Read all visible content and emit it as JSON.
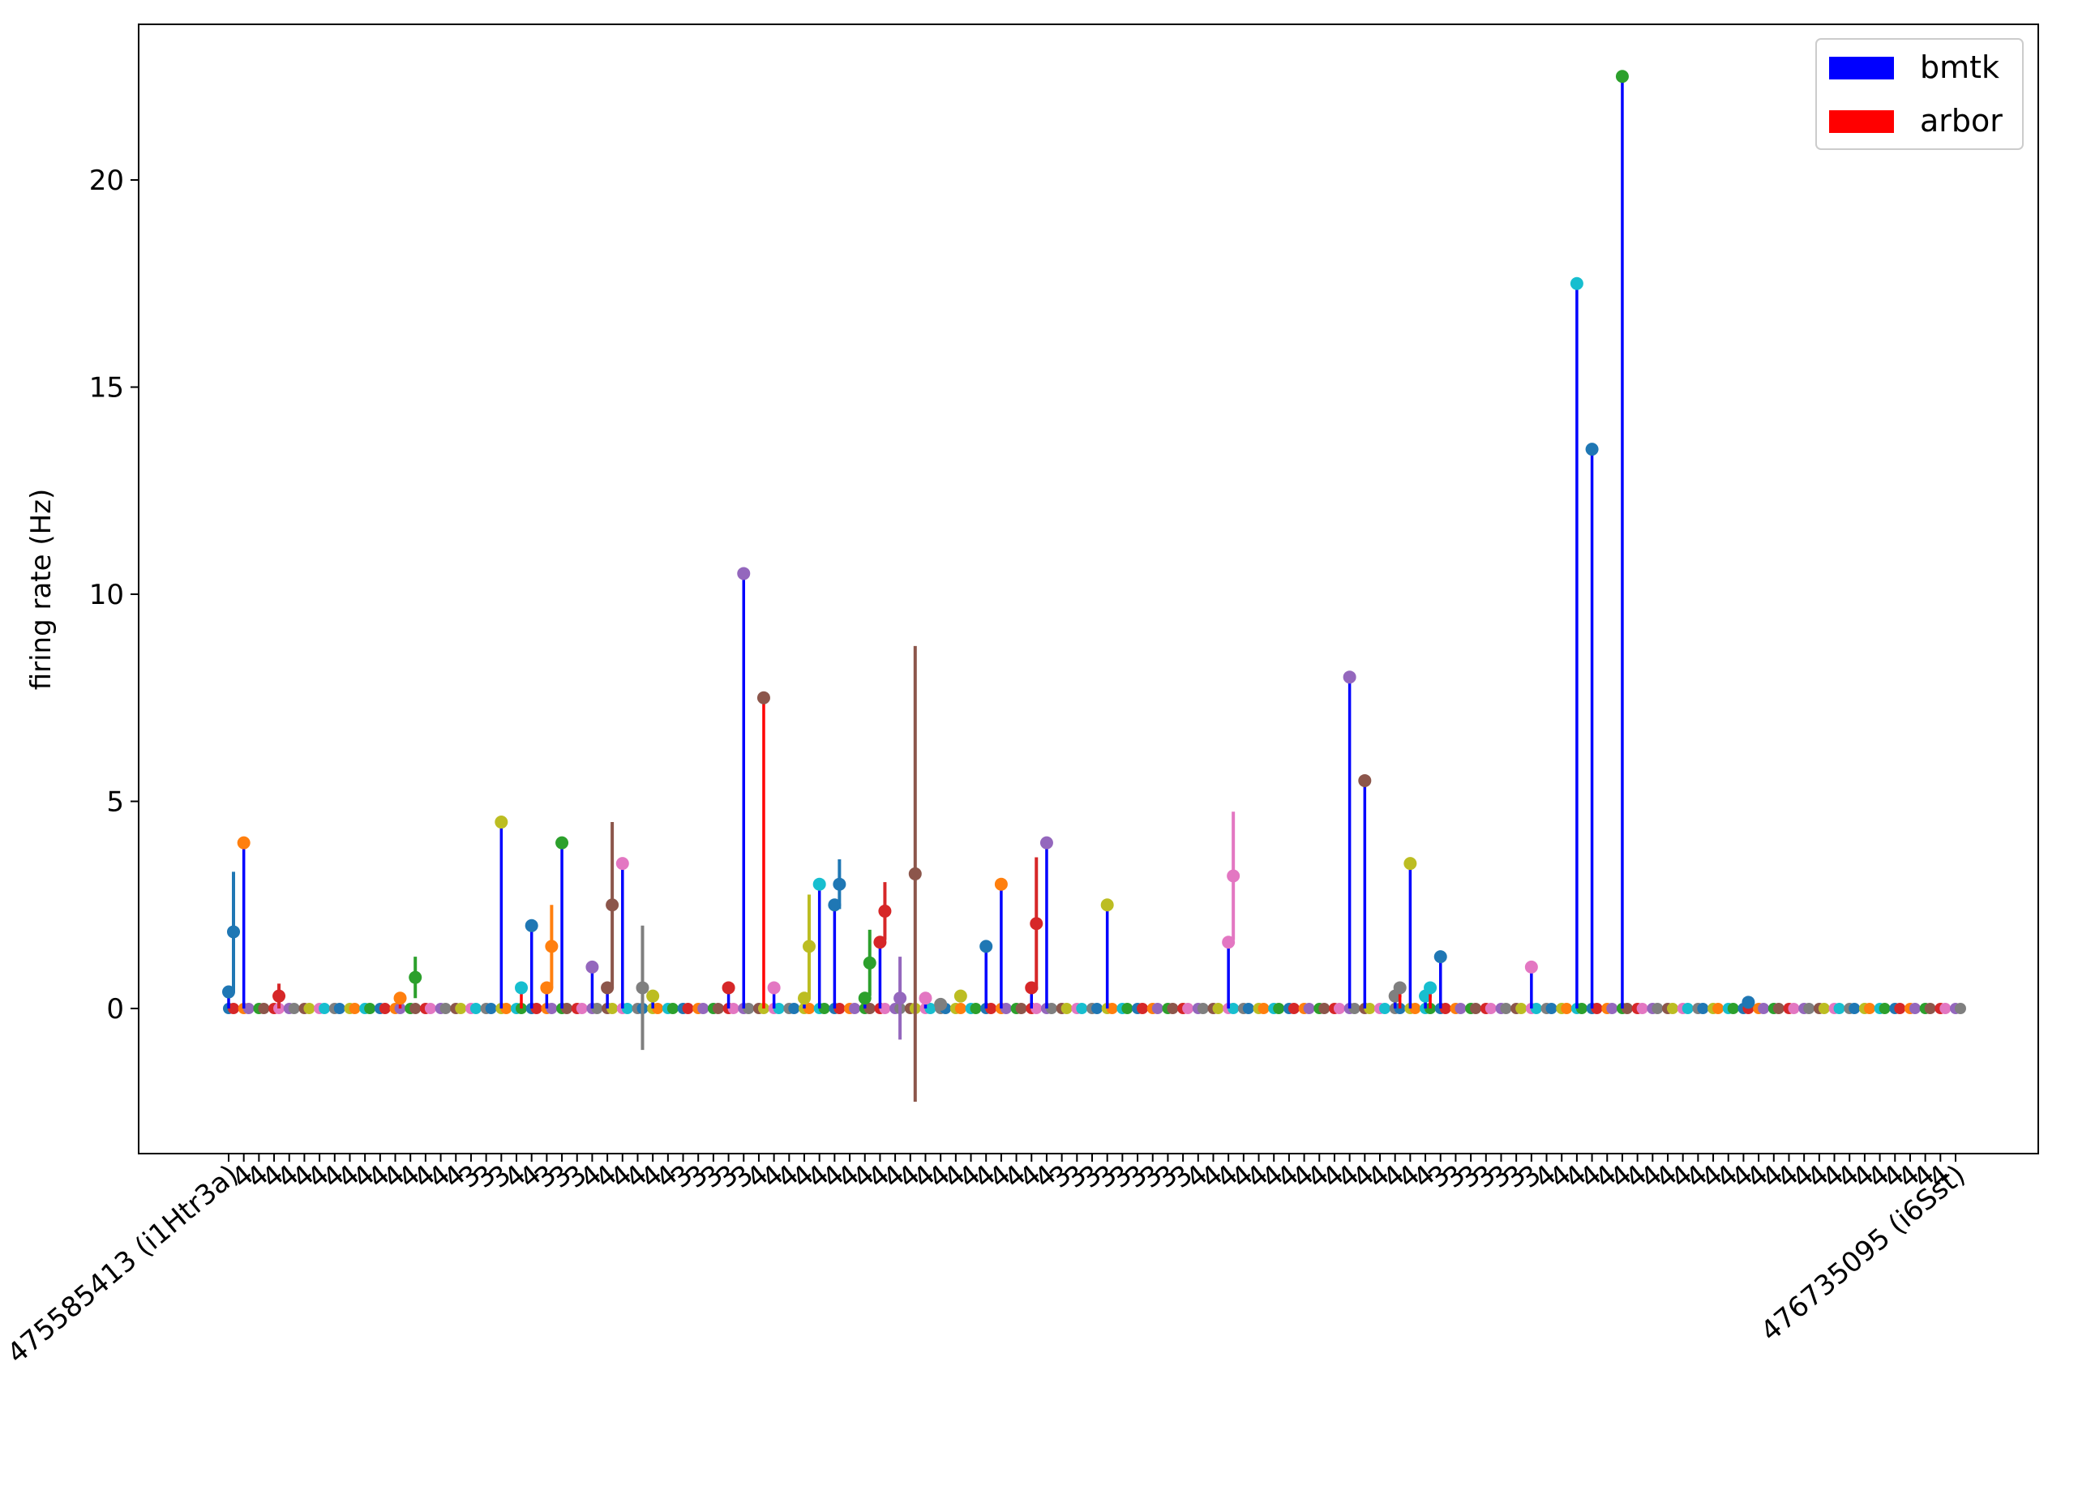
{
  "chart_data": {
    "type": "stem",
    "title": "",
    "xlabel": "",
    "ylabel": "firing rate (Hz)",
    "ylim": [
      -3.5,
      23.8
    ],
    "yticks": [
      0,
      5,
      10,
      15,
      20
    ],
    "grid": false,
    "legend": {
      "placement": "top-right",
      "entries": [
        {
          "name": "bmtk",
          "color": "#0000ff"
        },
        {
          "name": "arbor",
          "color": "#ff0000"
        }
      ]
    },
    "marker_palette": [
      "#1f77b4",
      "#ff7f0e",
      "#2ca02c",
      "#d62728",
      "#9467bd",
      "#8c564b",
      "#e377c2",
      "#7f7f7f",
      "#bcbd22",
      "#17becf"
    ],
    "category_count": 115,
    "category_labels_legible": false,
    "stems": [
      {
        "i": 0,
        "bmtk": 0.4,
        "arbor": 1.85,
        "err": 1.45
      },
      {
        "i": 1,
        "bmtk": 4.0,
        "arbor": 0.0,
        "err": 0
      },
      {
        "i": 2,
        "bmtk": 0.0,
        "arbor": 0.0,
        "err": 0
      },
      {
        "i": 3,
        "bmtk": 0.0,
        "arbor": 0.3,
        "err": 0.3
      },
      {
        "i": 11,
        "bmtk": 0.0,
        "arbor": 0.25,
        "err": 0
      },
      {
        "i": 12,
        "bmtk": 0.0,
        "arbor": 0.75,
        "err": 0.5
      },
      {
        "i": 18,
        "bmtk": 4.5,
        "arbor": 0.0,
        "err": 0
      },
      {
        "i": 19,
        "bmtk": 0.0,
        "arbor": 0.5,
        "err": 0
      },
      {
        "i": 20,
        "bmtk": 2.0,
        "arbor": 0.0,
        "err": 0
      },
      {
        "i": 21,
        "bmtk": 0.5,
        "arbor": 1.5,
        "err": 1.0
      },
      {
        "i": 22,
        "bmtk": 4.0,
        "arbor": 0.0,
        "err": 0
      },
      {
        "i": 24,
        "bmtk": 1.0,
        "arbor": 0.0,
        "err": 0
      },
      {
        "i": 25,
        "bmtk": 0.5,
        "arbor": 2.5,
        "err": 2.0
      },
      {
        "i": 26,
        "bmtk": 3.5,
        "arbor": 0.0,
        "err": 0
      },
      {
        "i": 27,
        "bmtk": 0.0,
        "arbor": 0.5,
        "err": 1.5
      },
      {
        "i": 28,
        "bmtk": 0.3,
        "arbor": 0.0,
        "err": 0
      },
      {
        "i": 33,
        "bmtk": 0.5,
        "arbor": 0.0,
        "err": 0
      },
      {
        "i": 34,
        "bmtk": 10.5,
        "arbor": 0.0,
        "err": 0
      },
      {
        "i": 35,
        "bmtk": 0.0,
        "arbor": 7.5,
        "err": 0
      },
      {
        "i": 36,
        "bmtk": 0.5,
        "arbor": 0.0,
        "err": 0
      },
      {
        "i": 38,
        "bmtk": 0.25,
        "arbor": 1.5,
        "err": 1.25
      },
      {
        "i": 39,
        "bmtk": 3.0,
        "arbor": 0.0,
        "err": 0
      },
      {
        "i": 40,
        "bmtk": 2.5,
        "arbor": 3.0,
        "err": 0.6
      },
      {
        "i": 42,
        "bmtk": 0.25,
        "arbor": 1.1,
        "err": 0.8
      },
      {
        "i": 43,
        "bmtk": 1.6,
        "arbor": 2.35,
        "err": 0.7
      },
      {
        "i": 44,
        "bmtk": 0.0,
        "arbor": 0.25,
        "err": 1.0
      },
      {
        "i": 45,
        "bmtk": 0.0,
        "arbor": 3.25,
        "err": 5.5
      },
      {
        "i": 46,
        "bmtk": 0.25,
        "arbor": 0.0,
        "err": 0
      },
      {
        "i": 47,
        "bmtk": 0.1,
        "arbor": 0.0,
        "err": 0
      },
      {
        "i": 48,
        "bmtk": 0.0,
        "arbor": 0.3,
        "err": 0.15
      },
      {
        "i": 50,
        "bmtk": 1.5,
        "arbor": 0.0,
        "err": 0
      },
      {
        "i": 51,
        "bmtk": 3.0,
        "arbor": 0.0,
        "err": 0
      },
      {
        "i": 53,
        "bmtk": 0.5,
        "arbor": 2.05,
        "err": 1.6
      },
      {
        "i": 54,
        "bmtk": 4.0,
        "arbor": 0.0,
        "err": 0
      },
      {
        "i": 58,
        "bmtk": 2.5,
        "arbor": 0.0,
        "err": 0
      },
      {
        "i": 66,
        "bmtk": 1.6,
        "arbor": 3.2,
        "err": 1.55
      },
      {
        "i": 74,
        "bmtk": 8.0,
        "arbor": 0.0,
        "err": 0
      },
      {
        "i": 75,
        "bmtk": 5.5,
        "arbor": 0.0,
        "err": 0
      },
      {
        "i": 77,
        "bmtk": 0.3,
        "arbor": 0.5,
        "err": 0
      },
      {
        "i": 78,
        "bmtk": 3.5,
        "arbor": 0.0,
        "err": 0
      },
      {
        "i": 79,
        "bmtk": 0.3,
        "arbor": 0.5,
        "err": 0
      },
      {
        "i": 80,
        "bmtk": 1.25,
        "arbor": 0.0,
        "err": 0
      },
      {
        "i": 86,
        "bmtk": 1.0,
        "arbor": 0.0,
        "err": 0
      },
      {
        "i": 89,
        "bmtk": 17.5,
        "arbor": 0.0,
        "err": 0
      },
      {
        "i": 90,
        "bmtk": 13.5,
        "arbor": 0.0,
        "err": 0
      },
      {
        "i": 92,
        "bmtk": 22.5,
        "arbor": 0.0,
        "err": 0
      },
      {
        "i": 100,
        "bmtk": 0.0,
        "arbor": 0.15,
        "err": 0
      }
    ],
    "category_labels": [
      "475585413 (i1Htr3a)",
      "4",
      "4",
      "4",
      "4",
      "4",
      "4",
      "4",
      "4",
      "4",
      "4",
      "4",
      "4",
      "4",
      "4",
      "4",
      "3",
      "3",
      "3",
      "4",
      "4",
      "3",
      "3",
      "3",
      "4",
      "4",
      "4",
      "4",
      "4",
      "4",
      "3",
      "3",
      "3",
      "3",
      "3",
      "4",
      "4",
      "4",
      "4",
      "4",
      "4",
      "4",
      "4",
      "4",
      "4",
      "4",
      "4",
      "4",
      "4",
      "4",
      "4",
      "4",
      "4",
      "4",
      "4",
      "3",
      "3",
      "3",
      "3",
      "3",
      "3",
      "3",
      "3",
      "3",
      "4",
      "4",
      "4",
      "4",
      "4",
      "4",
      "4",
      "4",
      "4",
      "4",
      "4",
      "4",
      "4",
      "4",
      "4",
      "4",
      "3",
      "3",
      "3",
      "3",
      "3",
      "3",
      "3",
      "4",
      "4",
      "4",
      "4",
      "4",
      "4",
      "4",
      "4",
      "4",
      "4",
      "4",
      "4",
      "4",
      "4",
      "4",
      "4",
      "4",
      "4",
      "4",
      "4",
      "4",
      "4",
      "4",
      "4",
      "4",
      "4",
      "4",
      "476735095 (i6Sst)"
    ]
  }
}
